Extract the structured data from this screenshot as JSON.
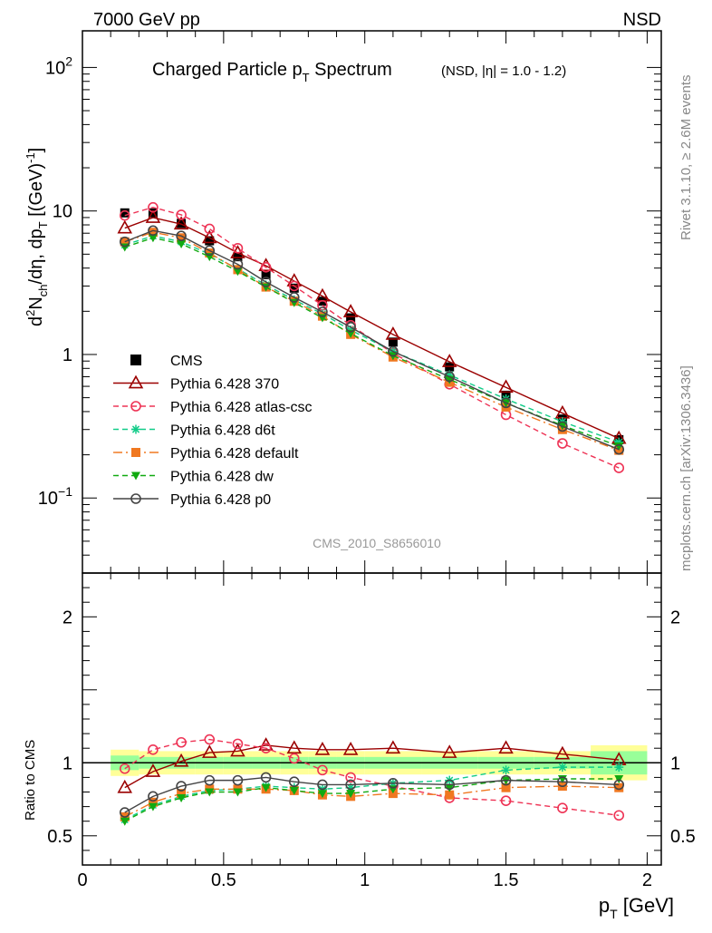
{
  "header": {
    "energy_label": "7000 GeV pp",
    "process_label": "NSD"
  },
  "title": {
    "main": "Charged Particle p",
    "main_sub": "T",
    "main_tail": " Spectrum",
    "cuts": "(NSD, |η| = 1.0 - 1.2)"
  },
  "ylabel_top": "d²N_ch/dη, dp_T [(GeV)⁻¹]",
  "ylabel_bottom": "Ratio to CMS",
  "xlabel": "p_T [GeV]",
  "right_labels": {
    "rivet": "Rivet 3.1.10, ≥ 2.6M events",
    "source": "mcplots.cern.ch [arXiv:1306.3436]"
  },
  "analysis_id": "CMS_2010_S8656010",
  "x_ticks": [
    "0",
    "0.5",
    "1",
    "1.5",
    "2"
  ],
  "y_ticks_top": [
    "10²",
    "10",
    "1",
    "10⁻¹"
  ],
  "y_ticks_bottom": [
    "0.5",
    "1",
    "2"
  ],
  "colors": {
    "CMS": "#000000",
    "p370": "#9b0000",
    "atlas": "#ee3355",
    "d6t": "#11cc88",
    "default": "#f07820",
    "dw": "#11aa11",
    "p0": "#444444",
    "band_outer": "#ffff99",
    "band_inner": "#99ff99"
  },
  "chart_data": {
    "type": "line",
    "x_label": "p_T [GeV]",
    "xlim": [
      0,
      2.05
    ],
    "main": {
      "ylim": [
        0.03,
        180
      ],
      "y_scale": "log"
    },
    "ratio": {
      "ylim": [
        0.3,
        2.3
      ]
    },
    "x": [
      0.15,
      0.25,
      0.35,
      0.45,
      0.55,
      0.65,
      0.75,
      0.85,
      0.95,
      1.1,
      1.3,
      1.5,
      1.7,
      1.9
    ],
    "series": [
      {
        "name": "CMS",
        "key": "CMS",
        "marker": "square_filled",
        "dash": "none",
        "values": [
          9.7,
          9.7,
          8.2,
          6.2,
          4.8,
          3.6,
          2.9,
          2.35,
          1.8,
          1.22,
          0.82,
          0.52,
          0.355,
          0.255
        ]
      },
      {
        "name": "Pythia 6.428 370",
        "key": "p370",
        "marker": "triangle_open",
        "dash": "none",
        "values": [
          7.6,
          9.0,
          8.1,
          6.5,
          5.1,
          4.15,
          3.25,
          2.55,
          1.98,
          1.38,
          0.89,
          0.59,
          0.39,
          0.26
        ]
      },
      {
        "name": "Pythia 6.428 atlas-csc",
        "key": "atlas",
        "marker": "circle_open",
        "dash": "6,4",
        "values": [
          9.3,
          10.6,
          9.4,
          7.5,
          5.5,
          4.05,
          3.0,
          2.2,
          1.6,
          1.02,
          0.62,
          0.38,
          0.24,
          0.162
        ]
      },
      {
        "name": "Pythia 6.428 d6t",
        "key": "d6t",
        "marker": "star",
        "dash": "6,4",
        "values": [
          5.8,
          6.7,
          6.1,
          5.0,
          3.95,
          3.05,
          2.4,
          1.92,
          1.48,
          1.05,
          0.72,
          0.49,
          0.34,
          0.245
        ]
      },
      {
        "name": "Pythia 6.428 default",
        "key": "default",
        "marker": "square_filled",
        "dash": "10,4,2,4",
        "values": [
          6.1,
          7.1,
          6.5,
          5.1,
          3.9,
          2.95,
          2.35,
          1.85,
          1.38,
          0.96,
          0.64,
          0.43,
          0.3,
          0.215
        ]
      },
      {
        "name": "Pythia 6.428 dw",
        "key": "dw",
        "marker": "triangle_down_filled",
        "dash": "6,4",
        "values": [
          5.6,
          6.5,
          5.9,
          4.8,
          3.8,
          2.95,
          2.3,
          1.8,
          1.4,
          0.98,
          0.67,
          0.46,
          0.32,
          0.23
        ]
      },
      {
        "name": "Pythia 6.428 p0",
        "key": "p0",
        "marker": "circle_open",
        "dash": "none",
        "values": [
          6.1,
          7.3,
          6.7,
          5.3,
          4.25,
          3.2,
          2.5,
          1.98,
          1.55,
          1.05,
          0.7,
          0.46,
          0.315,
          0.218
        ]
      }
    ],
    "ratios": {
      "p370": [
        0.83,
        0.94,
        1.01,
        1.07,
        1.08,
        1.12,
        1.1,
        1.09,
        1.09,
        1.1,
        1.07,
        1.1,
        1.06,
        1.02
      ],
      "atlas": [
        0.96,
        1.09,
        1.14,
        1.16,
        1.13,
        1.1,
        1.03,
        0.95,
        0.9,
        0.84,
        0.76,
        0.74,
        0.69,
        0.64
      ],
      "d6t": [
        0.61,
        0.71,
        0.77,
        0.81,
        0.82,
        0.84,
        0.83,
        0.82,
        0.83,
        0.86,
        0.88,
        0.95,
        0.97,
        0.97
      ],
      "default": [
        0.63,
        0.73,
        0.79,
        0.82,
        0.82,
        0.82,
        0.81,
        0.78,
        0.77,
        0.79,
        0.78,
        0.83,
        0.84,
        0.83
      ],
      "dw": [
        0.6,
        0.7,
        0.76,
        0.8,
        0.8,
        0.83,
        0.81,
        0.79,
        0.79,
        0.82,
        0.83,
        0.88,
        0.89,
        0.89
      ],
      "p0": [
        0.66,
        0.77,
        0.84,
        0.88,
        0.88,
        0.9,
        0.87,
        0.85,
        0.85,
        0.86,
        0.85,
        0.88,
        0.87,
        0.85
      ]
    },
    "uncertainty_bands": {
      "x_edges": [
        0.1,
        0.2,
        0.3,
        0.4,
        0.5,
        0.6,
        0.7,
        0.8,
        0.9,
        1.0,
        1.2,
        1.4,
        1.6,
        1.8,
        2.0
      ],
      "outer_half": [
        0.09,
        0.08,
        0.08,
        0.08,
        0.08,
        0.08,
        0.08,
        0.08,
        0.08,
        0.08,
        0.08,
        0.08,
        0.08,
        0.12
      ],
      "inner_half": [
        0.05,
        0.04,
        0.04,
        0.04,
        0.04,
        0.04,
        0.04,
        0.04,
        0.04,
        0.04,
        0.04,
        0.04,
        0.04,
        0.08
      ]
    },
    "legend_position": "middle-left"
  }
}
